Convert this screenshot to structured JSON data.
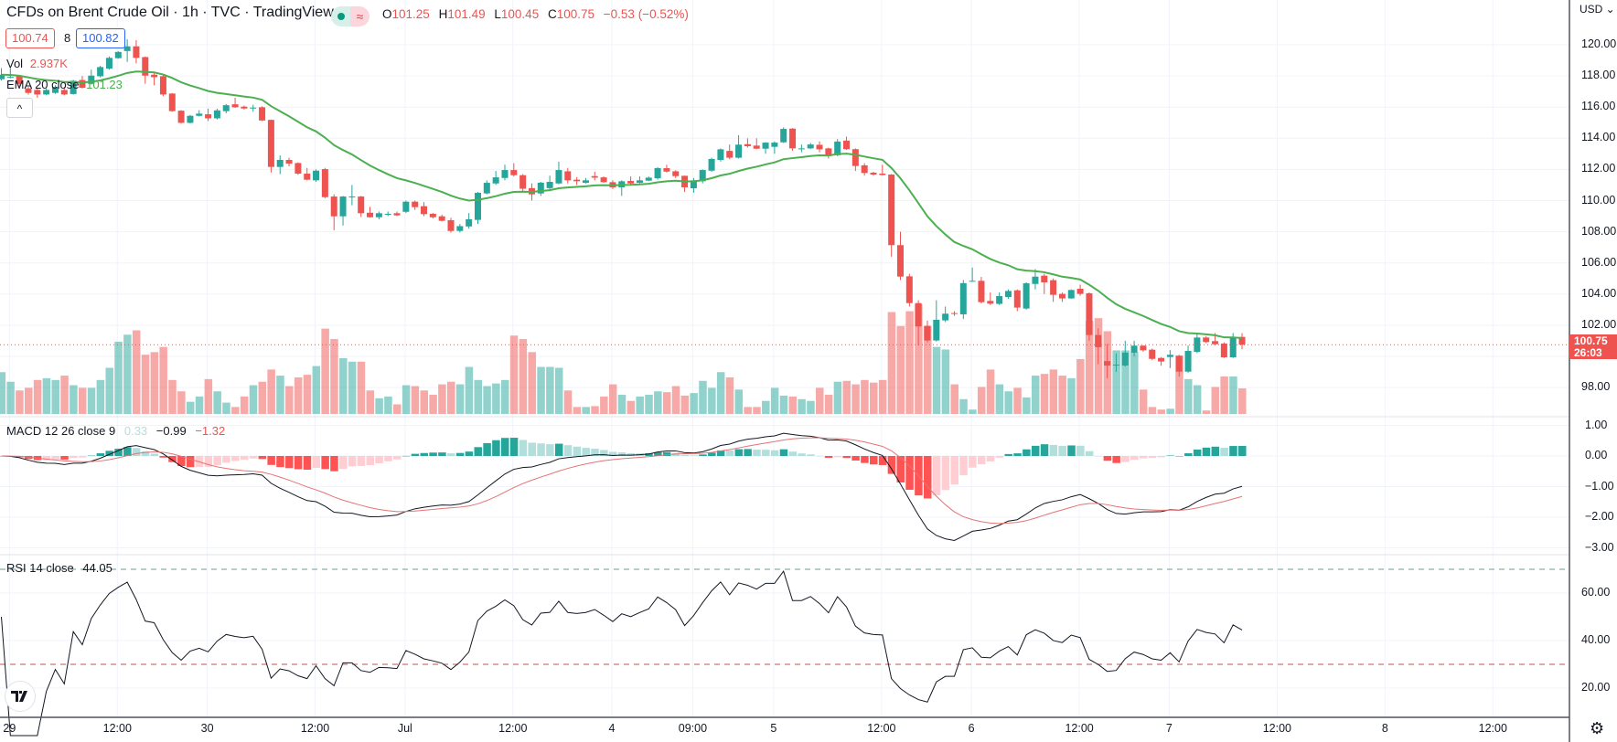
{
  "header": {
    "title": "CFDs on Brent Crude Oil · 1h · TVC · TradingView",
    "status_icon": "market-open-dot",
    "status_symbol": "≈",
    "ohlc": {
      "o_label": "O",
      "o": "101.25",
      "h_label": "H",
      "h": "101.49",
      "l_label": "L",
      "l": "100.45",
      "c_label": "C",
      "c": "100.75",
      "change": "−0.53 (−0.52%)"
    },
    "bid": "100.74",
    "spread": "8",
    "ask": "100.82",
    "collapse_icon": "^"
  },
  "legends": {
    "vol_label": "Vol",
    "vol_value": "2.937K",
    "ema_label": "EMA 20 close",
    "ema_value": "101.23",
    "macd_label": "MACD 12 26 close 9",
    "macd_hist": "0.33",
    "macd_value": "−0.99",
    "macd_signal": "−1.32",
    "rsi_label": "RSI 14 close",
    "rsi_value": "44.05"
  },
  "right_axis": {
    "currency": "USD ⌄",
    "price_labels": [
      "120.00",
      "118.00",
      "116.00",
      "114.00",
      "112.00",
      "110.00",
      "108.00",
      "106.00",
      "104.00",
      "102.00",
      "98.00"
    ],
    "last_price": "100.75",
    "countdown": "26:03",
    "macd_labels": [
      "1.00",
      "0.00",
      "−1.00",
      "−2.00",
      "−3.00"
    ],
    "rsi_labels": [
      "60.00",
      "40.00",
      "20.00"
    ]
  },
  "colors": {
    "up": "#26a69a",
    "down": "#ef5350",
    "ema": "#4caf50",
    "signal": "#e57373",
    "macd": "#131722"
  },
  "chart_data": {
    "type": "candlestick",
    "title": "CFDs on Brent Crude Oil · 1h · TVC",
    "interval": "1h",
    "ylim": [
      97,
      122
    ],
    "grid": true,
    "x_ticks": [
      {
        "label": "29",
        "bar": 1
      },
      {
        "label": "12:00",
        "bar": 13
      },
      {
        "label": "30",
        "bar": 23
      },
      {
        "label": "12:00",
        "bar": 35
      },
      {
        "label": "Jul",
        "bar": 45
      },
      {
        "label": "12:00",
        "bar": 57
      },
      {
        "label": "4",
        "bar": 68
      },
      {
        "label": "09:00",
        "bar": 77
      },
      {
        "label": "5",
        "bar": 86
      },
      {
        "label": "12:00",
        "bar": 98
      },
      {
        "label": "6",
        "bar": 108
      },
      {
        "label": "12:00",
        "bar": 120
      },
      {
        "label": "7",
        "bar": 130
      },
      {
        "label": "12:00",
        "bar": 142
      },
      {
        "label": "8",
        "bar": 154
      },
      {
        "label": "12:00",
        "bar": 166
      }
    ],
    "ohlc": [
      [
        117.79,
        118.5,
        117.7,
        118.08
      ],
      [
        117.94,
        118.55,
        117.85,
        117.94
      ],
      [
        117.98,
        118.05,
        117.3,
        117.49
      ],
      [
        117.2,
        117.3,
        116.8,
        116.91
      ],
      [
        117.1,
        117.2,
        116.6,
        116.81
      ],
      [
        116.81,
        117.2,
        116.75,
        117.1
      ],
      [
        116.91,
        117.4,
        116.85,
        117.3
      ],
      [
        117.1,
        117.3,
        116.75,
        116.81
      ],
      [
        116.84,
        117.75,
        116.8,
        117.69
      ],
      [
        117.74,
        118.0,
        117.2,
        117.24
      ],
      [
        117.49,
        118.4,
        117.45,
        118.02
      ],
      [
        117.98,
        118.65,
        117.9,
        118.57
      ],
      [
        118.47,
        119.25,
        118.4,
        119.16
      ],
      [
        119.14,
        119.6,
        119.1,
        119.54
      ],
      [
        119.6,
        120.35,
        118.9,
        119.9
      ],
      [
        119.9,
        120.3,
        118.8,
        119.16
      ],
      [
        119.21,
        119.25,
        117.5,
        118.02
      ],
      [
        118.08,
        118.2,
        117.4,
        117.92
      ],
      [
        117.98,
        118.05,
        116.7,
        116.81
      ],
      [
        116.87,
        116.9,
        115.7,
        115.74
      ],
      [
        115.77,
        115.8,
        114.95,
        114.99
      ],
      [
        114.99,
        115.5,
        114.95,
        115.44
      ],
      [
        115.44,
        115.8,
        115.4,
        115.58
      ],
      [
        115.54,
        115.9,
        115.1,
        115.28
      ],
      [
        115.28,
        115.9,
        115.2,
        115.79
      ],
      [
        115.74,
        116.2,
        115.6,
        116.12
      ],
      [
        116.18,
        116.6,
        115.95,
        115.99
      ],
      [
        116.03,
        116.1,
        115.85,
        115.91
      ],
      [
        115.97,
        116.15,
        115.7,
        115.97
      ],
      [
        115.99,
        116.05,
        115.1,
        115.14
      ],
      [
        115.18,
        115.2,
        111.8,
        112.16
      ],
      [
        112.16,
        112.9,
        111.7,
        112.61
      ],
      [
        112.61,
        112.75,
        112.2,
        112.37
      ],
      [
        112.41,
        112.45,
        111.65,
        111.73
      ],
      [
        111.73,
        112.1,
        111.3,
        111.34
      ],
      [
        111.3,
        112.0,
        111.2,
        111.92
      ],
      [
        112.02,
        112.1,
        110.15,
        110.22
      ],
      [
        110.26,
        110.4,
        108.1,
        108.99
      ],
      [
        108.99,
        110.3,
        108.4,
        110.26
      ],
      [
        110.26,
        111.0,
        109.7,
        110.26
      ],
      [
        110.26,
        110.3,
        108.95,
        109.19
      ],
      [
        109.22,
        109.6,
        108.9,
        108.93
      ],
      [
        108.93,
        109.3,
        108.8,
        109.19
      ],
      [
        109.15,
        109.3,
        109.0,
        109.15
      ],
      [
        109.19,
        109.3,
        109.0,
        109.05
      ],
      [
        109.28,
        110.0,
        109.2,
        109.93
      ],
      [
        109.93,
        110.0,
        109.4,
        109.58
      ],
      [
        109.64,
        109.9,
        109.0,
        109.13
      ],
      [
        109.15,
        109.2,
        108.85,
        108.93
      ],
      [
        108.99,
        109.1,
        108.65,
        108.7
      ],
      [
        108.74,
        108.9,
        107.95,
        108.05
      ],
      [
        108.05,
        108.5,
        107.95,
        108.36
      ],
      [
        108.34,
        109.2,
        108.2,
        108.8
      ],
      [
        108.76,
        110.55,
        108.5,
        110.5
      ],
      [
        110.46,
        111.3,
        110.4,
        111.14
      ],
      [
        111.1,
        111.9,
        111.0,
        111.49
      ],
      [
        111.45,
        112.3,
        111.3,
        111.96
      ],
      [
        111.96,
        112.4,
        111.55,
        111.63
      ],
      [
        111.63,
        111.7,
        110.6,
        110.76
      ],
      [
        110.8,
        111.1,
        110.0,
        110.4
      ],
      [
        110.46,
        111.2,
        110.3,
        111.15
      ],
      [
        110.8,
        111.6,
        110.6,
        111.2
      ],
      [
        111.1,
        112.5,
        111.05,
        111.96
      ],
      [
        111.88,
        112.1,
        111.1,
        111.3
      ],
      [
        111.34,
        111.5,
        111.0,
        111.24
      ],
      [
        111.14,
        111.45,
        111.1,
        111.3
      ],
      [
        111.57,
        111.85,
        111.3,
        111.47
      ],
      [
        111.49,
        111.55,
        111.15,
        111.18
      ],
      [
        111.18,
        111.3,
        110.75,
        110.85
      ],
      [
        110.85,
        111.3,
        110.3,
        111.24
      ],
      [
        111.26,
        111.55,
        111.05,
        111.1
      ],
      [
        111.14,
        111.55,
        111.1,
        111.3
      ],
      [
        111.28,
        111.55,
        111.25,
        111.47
      ],
      [
        111.43,
        112.15,
        111.35,
        112.08
      ],
      [
        112.08,
        112.3,
        111.8,
        111.86
      ],
      [
        111.88,
        111.95,
        111.45,
        111.57
      ],
      [
        111.59,
        111.6,
        110.55,
        110.85
      ],
      [
        110.79,
        111.45,
        110.5,
        111.3
      ],
      [
        111.24,
        112.0,
        111.1,
        111.96
      ],
      [
        111.92,
        112.75,
        111.85,
        112.67
      ],
      [
        112.61,
        113.35,
        112.5,
        113.29
      ],
      [
        113.19,
        113.6,
        112.65,
        112.75
      ],
      [
        112.75,
        114.2,
        112.7,
        113.59
      ],
      [
        113.62,
        114.0,
        113.4,
        113.49
      ],
      [
        113.53,
        114.0,
        113.3,
        113.33
      ],
      [
        113.33,
        113.75,
        113.0,
        113.72
      ],
      [
        113.45,
        113.8,
        113.0,
        113.72
      ],
      [
        113.74,
        114.7,
        113.7,
        114.6
      ],
      [
        114.62,
        114.65,
        113.2,
        113.35
      ],
      [
        113.35,
        113.6,
        113.1,
        113.35
      ],
      [
        113.35,
        113.7,
        113.3,
        113.6
      ],
      [
        113.58,
        113.8,
        113.1,
        113.29
      ],
      [
        113.35,
        113.4,
        112.7,
        112.86
      ],
      [
        112.91,
        113.95,
        112.85,
        113.79
      ],
      [
        113.85,
        114.1,
        113.25,
        113.3
      ],
      [
        113.3,
        113.35,
        111.9,
        112.22
      ],
      [
        112.26,
        112.4,
        111.6,
        111.77
      ],
      [
        111.79,
        111.85,
        111.6,
        111.67
      ],
      [
        111.73,
        112.3,
        111.6,
        111.64
      ],
      [
        111.67,
        111.7,
        106.4,
        107.14
      ],
      [
        107.14,
        108.0,
        104.9,
        105.12
      ],
      [
        105.14,
        105.3,
        103.2,
        103.42
      ],
      [
        103.42,
        103.6,
        100.7,
        101.92
      ],
      [
        101.96,
        102.3,
        100.9,
        101.02
      ],
      [
        101.02,
        103.6,
        100.95,
        102.35
      ],
      [
        102.31,
        103.2,
        102.2,
        102.74
      ],
      [
        102.78,
        102.9,
        102.6,
        102.74
      ],
      [
        102.7,
        104.9,
        102.4,
        104.7
      ],
      [
        104.85,
        105.7,
        104.8,
        104.85
      ],
      [
        104.85,
        105.1,
        103.4,
        103.48
      ],
      [
        103.56,
        104.1,
        103.3,
        103.38
      ],
      [
        103.37,
        104.1,
        103.3,
        103.87
      ],
      [
        103.81,
        104.3,
        103.7,
        104.2
      ],
      [
        104.24,
        104.3,
        102.9,
        103.13
      ],
      [
        103.07,
        104.75,
        103.0,
        104.69
      ],
      [
        104.65,
        105.6,
        104.3,
        105.12
      ],
      [
        105.18,
        105.3,
        104.0,
        104.75
      ],
      [
        104.89,
        105.0,
        103.5,
        103.95
      ],
      [
        104.01,
        104.1,
        103.5,
        103.72
      ],
      [
        103.72,
        104.3,
        103.7,
        104.26
      ],
      [
        104.34,
        104.6,
        103.9,
        104.01
      ],
      [
        104.05,
        104.1,
        101.0,
        101.37
      ],
      [
        101.37,
        101.8,
        99.5,
        100.59
      ],
      [
        99.7,
        100.8,
        98.6,
        99.41
      ],
      [
        99.47,
        100.2,
        99.0,
        99.47
      ],
      [
        99.41,
        101.0,
        99.35,
        100.24
      ],
      [
        100.24,
        101.0,
        100.0,
        100.69
      ],
      [
        100.69,
        100.7,
        100.3,
        100.39
      ],
      [
        100.43,
        100.5,
        99.75,
        99.84
      ],
      [
        99.9,
        99.95,
        99.4,
        99.67
      ],
      [
        99.96,
        100.4,
        99.25,
        100.1
      ],
      [
        100.04,
        100.1,
        98.7,
        99.02
      ],
      [
        99.02,
        100.7,
        98.95,
        100.35
      ],
      [
        100.29,
        101.5,
        100.2,
        101.21
      ],
      [
        101.21,
        101.3,
        100.85,
        100.92
      ],
      [
        100.98,
        101.5,
        100.7,
        100.78
      ],
      [
        100.82,
        100.9,
        99.9,
        99.94
      ],
      [
        99.94,
        101.5,
        99.9,
        101.21
      ],
      [
        101.25,
        101.49,
        100.45,
        100.75
      ]
    ],
    "volume_k": [
      4.8,
      3.7,
      2.7,
      3.0,
      3.9,
      4.1,
      3.9,
      4.4,
      3.3,
      3.0,
      3.0,
      3.9,
      5.3,
      8.3,
      9.1,
      9.6,
      6.8,
      7.1,
      7.7,
      3.9,
      2.6,
      1.4,
      2.0,
      4.0,
      2.6,
      1.3,
      0.8,
      2.0,
      3.3,
      3.7,
      5.1,
      4.4,
      3.2,
      4.2,
      4.5,
      5.5,
      9.8,
      8.6,
      6.4,
      6.0,
      6.0,
      2.7,
      1.8,
      2.0,
      1.1,
      3.3,
      3.2,
      2.7,
      2.2,
      3.4,
      3.7,
      3.4,
      5.4,
      3.9,
      3.2,
      3.5,
      3.9,
      9.0,
      8.6,
      7.1,
      5.4,
      5.4,
      5.3,
      2.7,
      0.8,
      0.8,
      0.9,
      2.0,
      3.4,
      2.2,
      1.5,
      2.0,
      2.2,
      2.6,
      2.5,
      3.2,
      2.1,
      2.4,
      3.8,
      3.0,
      4.8,
      4.2,
      2.8,
      0.8,
      0.8,
      1.5,
      3.0,
      2.1,
      2.0,
      1.7,
      1.5,
      3.0,
      2.2,
      3.7,
      3.8,
      3.4,
      3.9,
      3.6,
      3.9,
      11.7,
      10.1,
      11.8,
      12.6,
      10.1,
      7.7,
      7.4,
      3.4,
      1.7,
      0.5,
      3.1,
      5.1,
      3.4,
      2.6,
      3.0,
      1.9,
      4.4,
      4.6,
      5.1,
      4.4,
      4.1,
      6.3,
      10.7,
      11.0,
      9.5,
      7.3,
      7.3,
      7.1,
      2.8,
      0.8,
      0.5,
      0.6,
      6.7,
      4.0,
      3.3,
      0.4,
      3.1,
      4.3,
      4.3,
      2.937
    ],
    "indicators": {
      "ema_period": 20,
      "macd": [
        12,
        26,
        9
      ],
      "rsi_period": 14,
      "rsi_upper": 70,
      "rsi_lower": 30
    }
  },
  "footer": {
    "settings_icon": "gear-icon"
  }
}
